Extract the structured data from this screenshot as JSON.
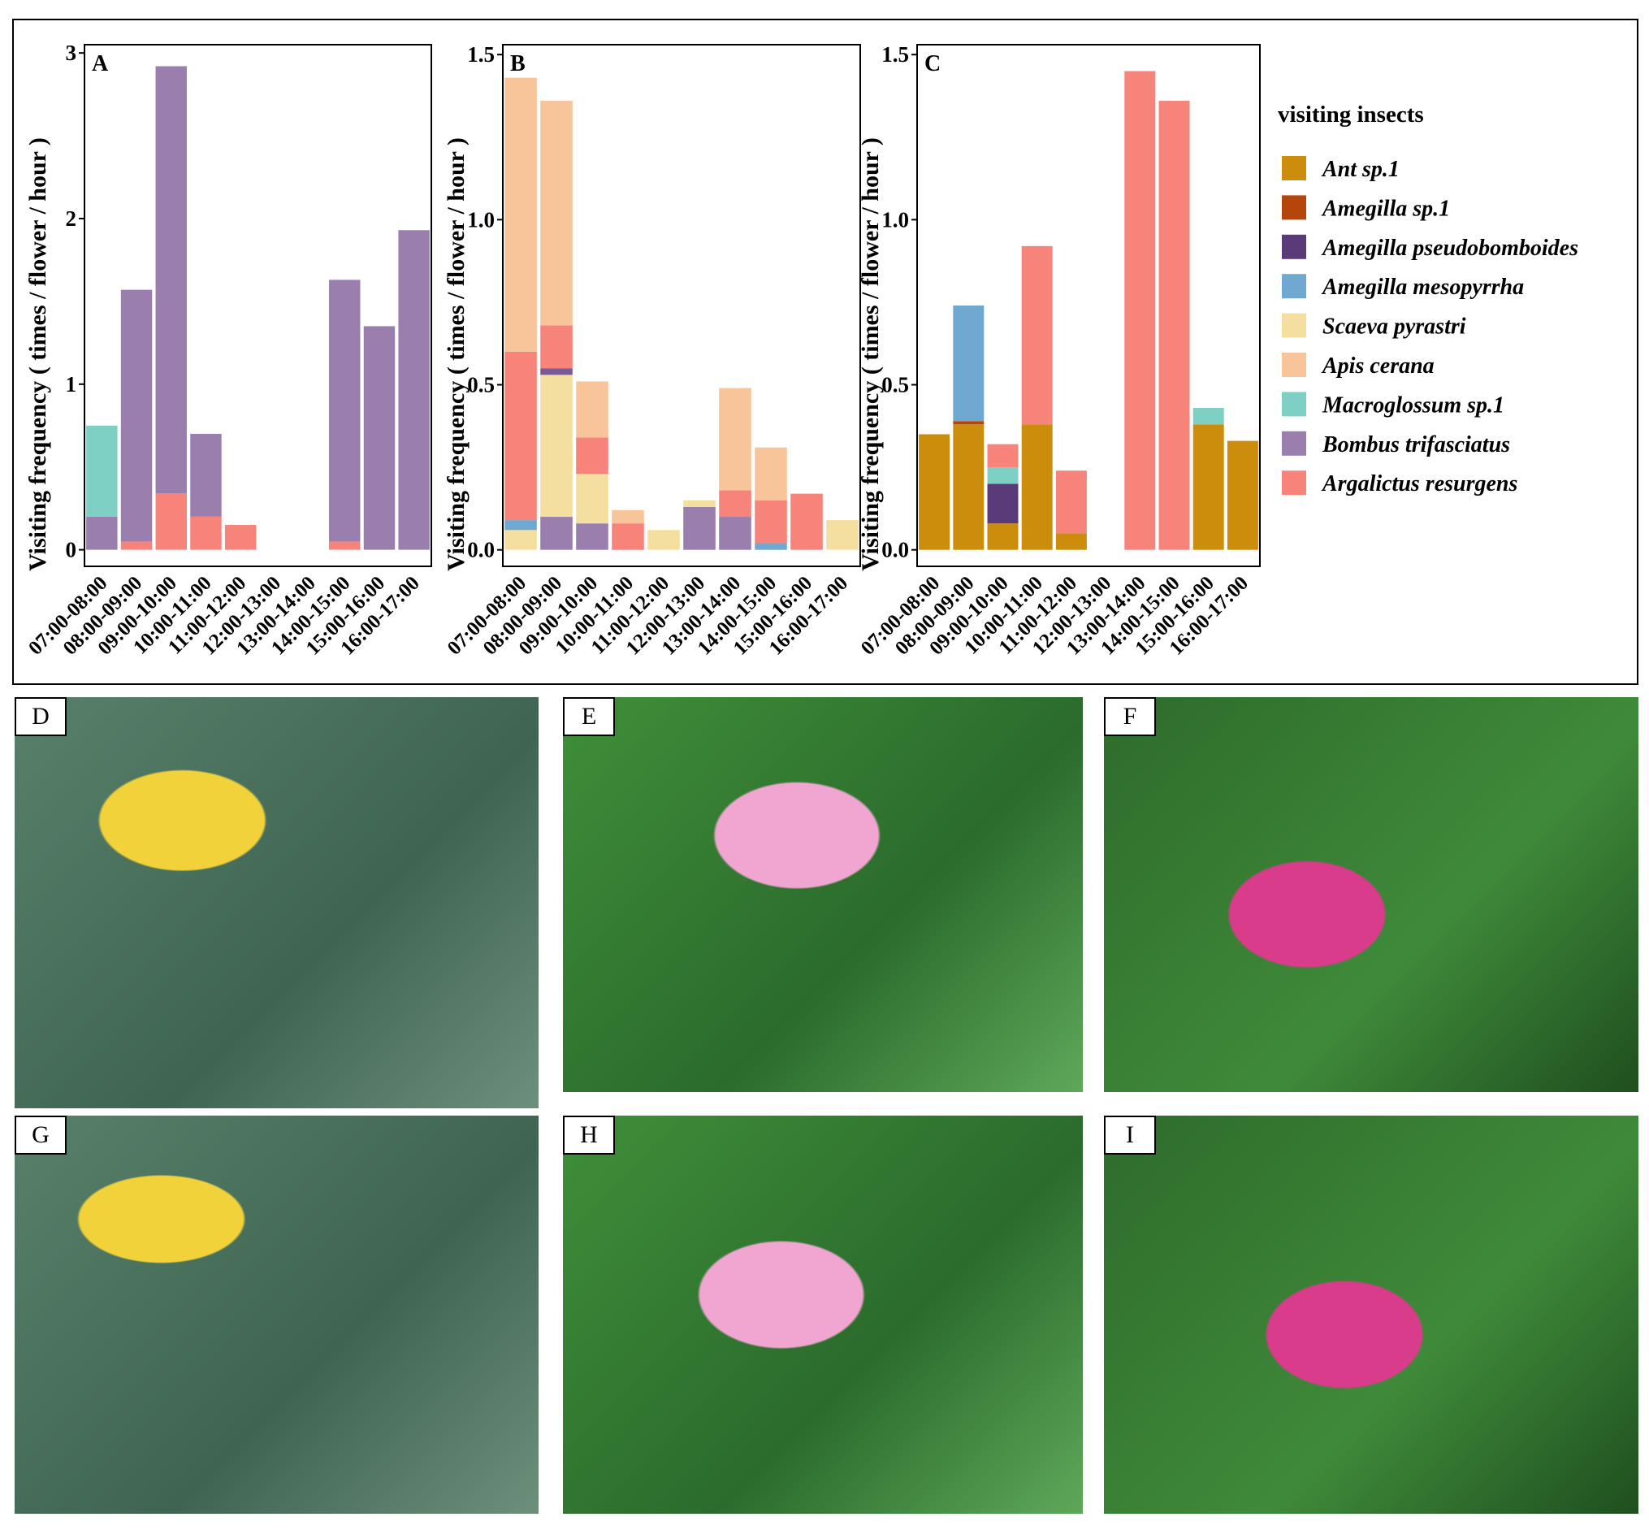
{
  "chart_data": [
    {
      "type": "bar",
      "stacked": true,
      "title": "A",
      "y_label": "Visiting frequency ( times / flower / hour )",
      "categories": [
        "07:00-08:00",
        "08:00-09:00",
        "09:00-10:00",
        "10:00-11:00",
        "11:00-12:00",
        "12:00-13:00",
        "13:00-14:00",
        "14:00-15:00",
        "15:00-16:00",
        "16:00-17:00"
      ],
      "ylim": [
        -0.1,
        3.05
      ],
      "yticks": [
        0,
        1,
        2,
        3
      ],
      "series": [
        {
          "name": "Argalictus resurgens",
          "color": "#f6847a",
          "values": [
            0,
            0.05,
            0.34,
            0.2,
            0.15,
            0,
            0,
            0.05,
            0,
            0
          ]
        },
        {
          "name": "Bombus trifasciatus",
          "color": "#9a7fae",
          "values": [
            0.2,
            1.52,
            2.58,
            0.5,
            0,
            0,
            0,
            1.58,
            1.35,
            1.93
          ]
        },
        {
          "name": "Macroglossum sp.1",
          "color": "#7fd0c4",
          "values": [
            0.55,
            0,
            0,
            0,
            0,
            0,
            0,
            0,
            0,
            0
          ]
        }
      ]
    },
    {
      "type": "bar",
      "stacked": true,
      "title": "B",
      "y_label": "Visiting frequency ( times / flower / hour )",
      "categories": [
        "07:00-08:00",
        "08:00-09:00",
        "09:00-10:00",
        "10:00-11:00",
        "11:00-12:00",
        "12:00-13:00",
        "13:00-14:00",
        "14:00-15:00",
        "15:00-16:00",
        "16:00-17:00"
      ],
      "ylim": [
        -0.05,
        1.53
      ],
      "yticks": [
        {
          "value": 0,
          "label": "0.0"
        },
        0.5,
        {
          "value": 1,
          "label": "1.0"
        },
        1.5
      ],
      "series": [
        {
          "name": "Bombus trifasciatus",
          "color": "#9a7fae",
          "values": [
            0,
            0.1,
            0.08,
            0,
            0,
            0.13,
            0.1,
            0,
            0,
            0
          ]
        },
        {
          "name": "Scaeva pyrastri",
          "color": "#f5dfa0",
          "values": [
            0.06,
            0.43,
            0.15,
            0,
            0.06,
            0.02,
            0,
            0,
            0,
            0.09
          ]
        },
        {
          "name": "Amegilla mesopyrrha",
          "color": "#6fa9d2",
          "values": [
            0.03,
            0,
            0,
            0,
            0,
            0,
            0,
            0.02,
            0,
            0
          ]
        },
        {
          "name": "Amegilla pseudobomboides",
          "color": "#7a5a94",
          "values": [
            0,
            0.02,
            0,
            0,
            0,
            0,
            0,
            0,
            0,
            0
          ]
        },
        {
          "name": "Argalictus resurgens",
          "color": "#f6847a",
          "values": [
            0.51,
            0.13,
            0.11,
            0.08,
            0,
            0,
            0.08,
            0.13,
            0.17,
            0
          ]
        },
        {
          "name": "Apis cerana",
          "color": "#f8c49a",
          "values": [
            0.83,
            0.68,
            0.17,
            0.04,
            0,
            0,
            0.31,
            0.16,
            0,
            0
          ]
        }
      ]
    },
    {
      "type": "bar",
      "stacked": true,
      "title": "C",
      "y_label": "Visiting frequency ( times / flower / hour )",
      "legend_title": "visiting insects",
      "legend": "right",
      "categories": [
        "07:00-08:00",
        "08:00-09:00",
        "09:00-10:00",
        "10:00-11:00",
        "11:00-12:00",
        "12:00-13:00",
        "13:00-14:00",
        "14:00-15:00",
        "15:00-16:00",
        "16:00-17:00"
      ],
      "ylim": [
        -0.05,
        1.53
      ],
      "yticks": [
        {
          "value": 0,
          "label": "0.0"
        },
        0.5,
        {
          "value": 1,
          "label": "1.0"
        },
        1.5
      ],
      "series": [
        {
          "name": "Ant sp.1",
          "color": "#cc8d0c",
          "values": [
            0.35,
            0.38,
            0.08,
            0.38,
            0.05,
            0,
            0,
            0,
            0.38,
            0.33
          ]
        },
        {
          "name": "Amegilla sp.1",
          "color": "#b5460b",
          "values": [
            0,
            0.01,
            0,
            0,
            0,
            0,
            0,
            0,
            0,
            0
          ]
        },
        {
          "name": "Amegilla pseudobomboides",
          "color": "#5a3a78",
          "values": [
            0,
            0,
            0.12,
            0,
            0,
            0,
            0,
            0,
            0,
            0
          ]
        },
        {
          "name": "Amegilla mesopyrrha",
          "color": "#6fa9d2",
          "values": [
            0,
            0.35,
            0,
            0,
            0,
            0,
            0,
            0,
            0,
            0
          ]
        },
        {
          "name": "Scaeva pyrastri",
          "color": "#f5dfa0",
          "values": [
            0,
            0,
            0,
            0,
            0,
            0,
            0,
            0,
            0,
            0
          ]
        },
        {
          "name": "Apis cerana",
          "color": "#f8c49a",
          "values": [
            0,
            0,
            0,
            0,
            0,
            0,
            0,
            0,
            0,
            0
          ]
        },
        {
          "name": "Macroglossum sp.1",
          "color": "#7fd0c4",
          "values": [
            0,
            0,
            0.05,
            0,
            0,
            0,
            0,
            0,
            0.05,
            0
          ]
        },
        {
          "name": "Bombus trifasciatus",
          "color": "#9a7fae",
          "values": [
            0,
            0,
            0,
            0,
            0,
            0,
            0,
            0,
            0,
            0
          ]
        },
        {
          "name": "Argalictus resurgens",
          "color": "#f6847a",
          "values": [
            0,
            0,
            0.07,
            0.54,
            0.19,
            0,
            1.45,
            1.36,
            0,
            0
          ]
        }
      ]
    }
  ],
  "photo_labels": [
    "D",
    "E",
    "F",
    "G",
    "H",
    "I"
  ]
}
